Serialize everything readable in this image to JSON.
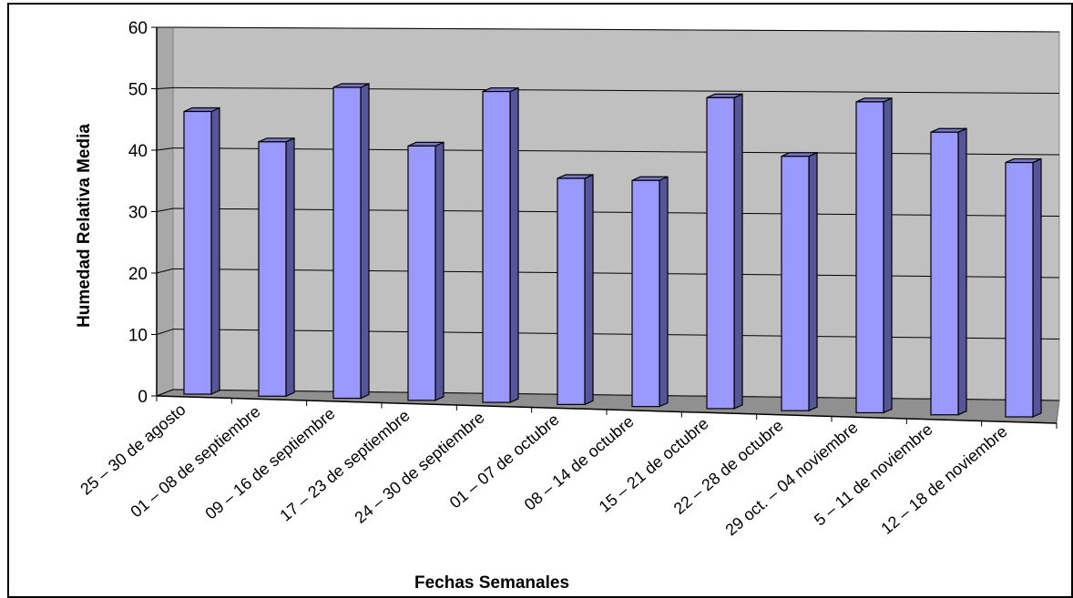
{
  "chart_data": {
    "type": "bar",
    "style": "3d-column",
    "title": "",
    "xlabel": "Fechas Semanales",
    "ylabel": "Humedad Relativa Media",
    "ylim": [
      0,
      60
    ],
    "yticks": [
      0,
      10,
      20,
      30,
      40,
      50,
      60
    ],
    "grid": true,
    "legend": "none",
    "categories": [
      "25 – 30 de agosto",
      "01 – 08 de septiembre",
      "09 – 16 de septiembre",
      "17 – 23 de septiembre",
      "24 – 30 de septiembre",
      "01 – 07 de octubre",
      "08 – 14 de octubre",
      "15 – 21 de octubre",
      "22 – 28 de octubre",
      "29 oct. – 04 noviembre",
      "5 – 11 de noviembre",
      "12 – 18 de noviembre"
    ],
    "values": [
      50,
      45,
      55,
      45,
      55,
      40,
      40,
      55,
      45,
      55,
      50,
      45
    ],
    "colors": {
      "bar_front": "#9999ff",
      "bar_side": "#55559a",
      "bar_top": "#7777cc",
      "wall": "#c0c0c0",
      "floor": "#909090"
    }
  }
}
